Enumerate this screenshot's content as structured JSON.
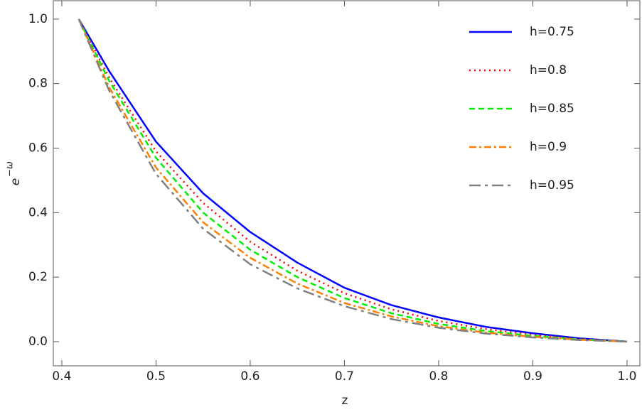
{
  "chart_data": {
    "type": "line",
    "xlabel": "z",
    "ylabel": {
      "base": "e",
      "superscript": "−ω"
    },
    "x": [
      0.418,
      0.45,
      0.5,
      0.55,
      0.6,
      0.65,
      0.7,
      0.75,
      0.8,
      0.85,
      0.9,
      0.95,
      1.0
    ],
    "series": [
      {
        "name": "h=0.75",
        "color": "#0000ff",
        "dash": "solid",
        "values": [
          1.0,
          0.84,
          0.62,
          0.46,
          0.34,
          0.245,
          0.167,
          0.113,
          0.075,
          0.046,
          0.026,
          0.01,
          0
        ]
      },
      {
        "name": "h=0.8",
        "color": "#ff0000",
        "dash": "dotted",
        "values": [
          1.0,
          0.82,
          0.59,
          0.43,
          0.31,
          0.22,
          0.15,
          0.1,
          0.064,
          0.039,
          0.021,
          0.008,
          0
        ]
      },
      {
        "name": "h=0.85",
        "color": "#00ee00",
        "dash": "dashed",
        "values": [
          1.0,
          0.81,
          0.57,
          0.4,
          0.285,
          0.2,
          0.135,
          0.088,
          0.055,
          0.033,
          0.018,
          0.007,
          0
        ]
      },
      {
        "name": "h=0.9",
        "color": "#ff8000",
        "dash": "dashdot",
        "values": [
          1.0,
          0.79,
          0.54,
          0.37,
          0.26,
          0.18,
          0.12,
          0.078,
          0.048,
          0.028,
          0.015,
          0.006,
          0
        ]
      },
      {
        "name": "h=0.95",
        "color": "#808080",
        "dash": "longdash",
        "values": [
          1.0,
          0.78,
          0.52,
          0.35,
          0.24,
          0.165,
          0.11,
          0.07,
          0.043,
          0.025,
          0.013,
          0.005,
          0
        ]
      }
    ],
    "xlim": [
      0.391,
      1.0136
    ],
    "ylim": [
      -0.075,
      1.057
    ],
    "xticks": [
      0.4,
      0.5,
      0.6,
      0.7,
      0.8,
      0.9,
      {
        "value": 1.0,
        "label": "1.0"
      }
    ],
    "yticks": [
      {
        "value": 0,
        "label": "0.0"
      },
      0.2,
      0.4,
      0.6,
      0.8,
      {
        "value": 1.0,
        "label": "1.0"
      }
    ],
    "legend": "upper right"
  }
}
